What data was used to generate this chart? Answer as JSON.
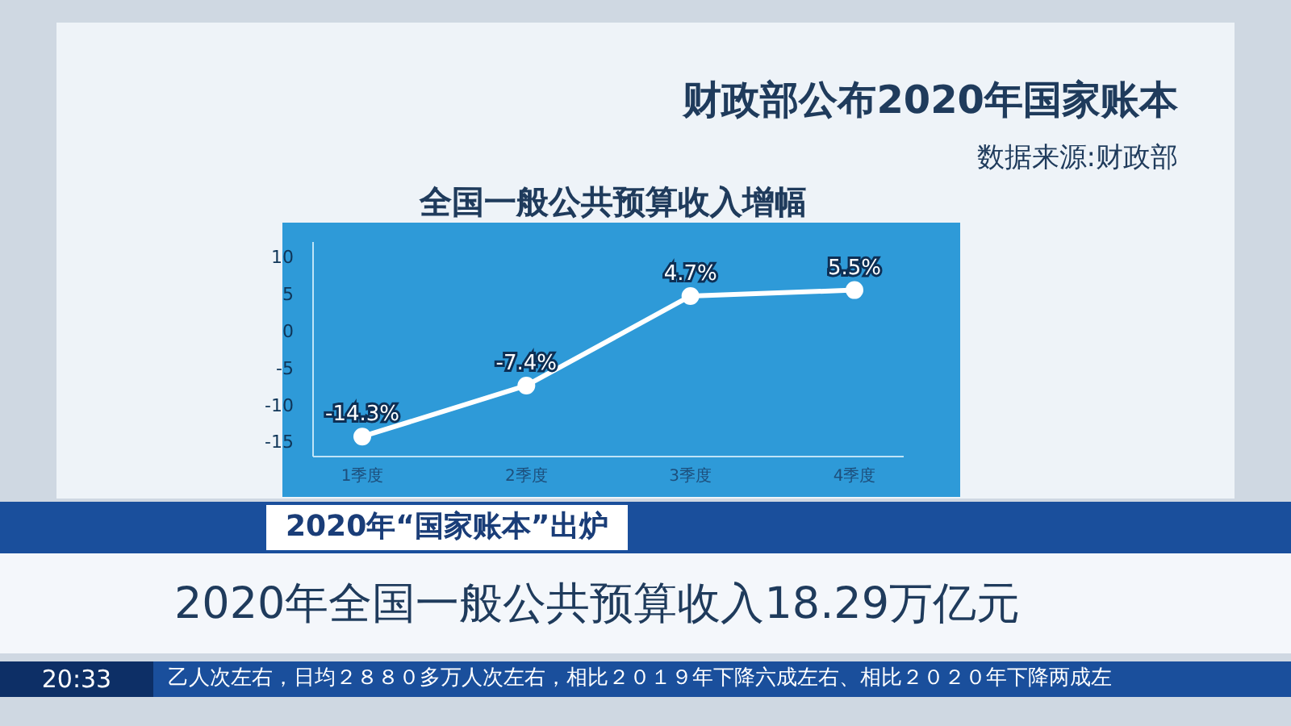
{
  "chart_data": {
    "type": "line",
    "title": "财政部公布2020年国家账本",
    "subtitle": "全国一般公共预算收入增幅",
    "categories": [
      "1季度",
      "2季度",
      "3季度",
      "4季度"
    ],
    "series": [
      {
        "color": "#ffffff",
        "values": [
          -14.3,
          -7.4,
          4.7,
          5.5
        ],
        "value_labels": [
          "-14.3%",
          "-7.4%",
          "4.7%",
          "5.5%"
        ]
      }
    ],
    "ylim": [
      -17,
      12
    ],
    "yticks": [
      -15,
      -10,
      -5,
      0,
      5,
      10
    ],
    "grid": false,
    "marker": "circle",
    "line_style": "solid",
    "annotations": [
      "数据来源:财政部",
      "2020年“国家账本”出炉",
      "2020年全国一般公共预算收入18.29万亿元",
      "乙人次左右，日均２８８０多万人次左右，相比２０１９年下降六成左右、相比２０２０年下降两成左",
      "20:33"
    ]
  }
}
